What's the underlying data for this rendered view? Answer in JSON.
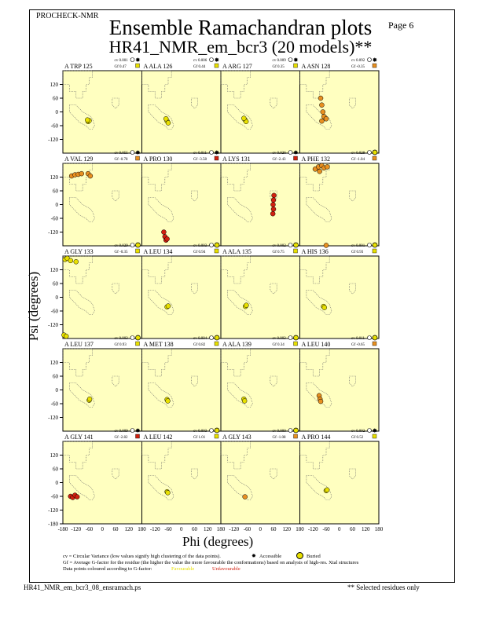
{
  "header": {
    "program": "PROCHECK-NMR",
    "page": "Page  6",
    "title": "Ensemble Ramachandran plots",
    "subtitle": "HR41_NMR_em_bcr3 (20 models)**"
  },
  "footer": {
    "filename": "HR41_NMR_em_bcr3_08_ensramach.ps",
    "note": "** Selected residues only"
  },
  "legend": {
    "cv_line": "cv = Circular Variance (low values signify high clustering of the data points).",
    "accessible": "Accessible",
    "buried": "Buried",
    "gf_line": "Gf = Average G-factor for the residue (the higher the value the more favourable the conformations) based on analysis of high-res. Xtal structures",
    "colour_line": "Data points coloured according to G-factor:",
    "favourable": "Favourable",
    "unfavourable": "Unfavourable"
  },
  "colors": {
    "panel": "#ffffc0",
    "favourable": "#e8e000",
    "mid": "#e89020",
    "unfavourable": "#d02010"
  },
  "chart_data": {
    "type": "scatter",
    "xlabel": "Phi (degrees)",
    "ylabel": "Psi (degrees)",
    "xlim": [
      -180,
      180
    ],
    "ylim": [
      -180,
      180
    ],
    "xticks": [
      "-180",
      "-120",
      "-60",
      "0",
      "60",
      "120",
      "180"
    ],
    "yticks": [
      "120",
      "60",
      "0",
      "-60",
      "-120",
      "-180"
    ],
    "panels": [
      {
        "label": "A TRP 125",
        "cv": "cv 0.001",
        "gf": "Gf 0.47",
        "gfc": "favourable",
        "acc": "accessible",
        "points": [
          [
            -65,
            -42
          ],
          [
            -60,
            -38
          ],
          [
            -68,
            -35
          ]
        ]
      },
      {
        "label": "A ALA 126",
        "cv": "cv 0.006",
        "gf": "Gf 0.44",
        "gfc": "favourable",
        "acc": "accessible",
        "points": [
          [
            -65,
            -40
          ],
          [
            -70,
            -30
          ],
          [
            -60,
            -48
          ]
        ]
      },
      {
        "label": "A ARG 127",
        "cv": "cv 0.009",
        "gf": "Gf 0.35",
        "gfc": "favourable",
        "acc": "accessible",
        "points": [
          [
            -70,
            -35
          ],
          [
            -65,
            -42
          ],
          [
            -75,
            -28
          ]
        ]
      },
      {
        "label": "A ASN 128",
        "cv": "cv 0.092",
        "gf": "Gf -0.35",
        "gfc": "mid",
        "acc": "accessible",
        "points": [
          [
            -85,
            60
          ],
          [
            -80,
            30
          ],
          [
            -75,
            0
          ],
          [
            -70,
            -20
          ],
          [
            -80,
            -40
          ],
          [
            -60,
            -30
          ]
        ]
      },
      {
        "label": "A VAL 129",
        "cv": "cv 0.055",
        "gf": "Gf -0.78",
        "gfc": "mid",
        "acc": "accessible",
        "points": [
          [
            -140,
            125
          ],
          [
            -125,
            130
          ],
          [
            -110,
            132
          ],
          [
            -95,
            135
          ],
          [
            -65,
            135
          ],
          [
            -55,
            125
          ]
        ]
      },
      {
        "label": "A PRO 130",
        "cv": "cv 0.011",
        "gf": "Gf -3.58",
        "gfc": "unfavourable",
        "acc": "accessible",
        "points": [
          [
            -80,
            -120
          ],
          [
            -75,
            -140
          ],
          [
            -70,
            -155
          ],
          [
            -65,
            -150
          ]
        ]
      },
      {
        "label": "A LYS 131",
        "cv": "cv 0.026",
        "gf": "Gf -2.43",
        "gfc": "unfavourable",
        "acc": "accessible",
        "points": [
          [
            62,
            40
          ],
          [
            60,
            20
          ],
          [
            58,
            0
          ],
          [
            60,
            -20
          ],
          [
            57,
            -40
          ]
        ]
      },
      {
        "label": "A PHE 132",
        "cv": "cv 0.028",
        "gf": "Gf -1.04",
        "gfc": "mid",
        "acc": "buried",
        "points": [
          [
            -110,
            155
          ],
          [
            -95,
            165
          ],
          [
            -80,
            170
          ],
          [
            -70,
            160
          ],
          [
            -55,
            165
          ],
          [
            -90,
            145
          ],
          [
            -60,
            -178
          ]
        ]
      },
      {
        "label": "A GLY 133",
        "cv": "cv 0.029",
        "gf": "Gf -0.35",
        "gfc": "favourable",
        "acc": "buried",
        "points": [
          [
            -170,
            165
          ],
          [
            -160,
            170
          ],
          [
            -145,
            160
          ],
          [
            -120,
            155
          ],
          [
            -175,
            -165
          ],
          [
            -165,
            -170
          ]
        ]
      },
      {
        "label": "A LEU 134",
        "cv": "cv 0.003",
        "gf": "Gf 0.94",
        "gfc": "favourable",
        "acc": "buried",
        "points": [
          [
            -65,
            -42
          ],
          [
            -60,
            -38
          ]
        ]
      },
      {
        "label": "A ALA 135",
        "cv": "cv 0.002",
        "gf": "Gf 0.75",
        "gfc": "favourable",
        "acc": "buried",
        "points": [
          [
            -68,
            -40
          ],
          [
            -64,
            -35
          ]
        ]
      },
      {
        "label": "A HIS 136",
        "cv": "cv 0.001",
        "gf": "Gf 0.93",
        "gfc": "favourable",
        "acc": "buried",
        "points": [
          [
            -72,
            -40
          ],
          [
            -68,
            -45
          ]
        ]
      },
      {
        "label": "A LEU 137",
        "cv": "cv 0.003",
        "gf": "Gf 0.93",
        "gfc": "favourable",
        "acc": "buried",
        "points": [
          [
            -60,
            -45
          ],
          [
            -58,
            -40
          ]
        ]
      },
      {
        "label": "A MET 138",
        "cv": "cv 0.004",
        "gf": "Gf 0.82",
        "gfc": "favourable",
        "acc": "buried",
        "points": [
          [
            -65,
            -42
          ],
          [
            -62,
            -48
          ]
        ]
      },
      {
        "label": "A ALA 139",
        "cv": "cv 0.003",
        "gf": "Gf 0.34",
        "gfc": "favourable",
        "acc": "buried",
        "points": [
          [
            -75,
            -40
          ],
          [
            -72,
            -48
          ]
        ]
      },
      {
        "label": "A LEU 140",
        "cv": "cv 0.011",
        "gf": "Gf -0.65",
        "gfc": "mid",
        "acc": "buried",
        "points": [
          [
            -92,
            -25
          ],
          [
            -88,
            -40
          ],
          [
            -85,
            -50
          ]
        ]
      },
      {
        "label": "A GLY 141",
        "cv": "cv 0.009",
        "gf": "Gf -2.82",
        "gfc": "unfavourable",
        "acc": "accessible",
        "points": [
          [
            -145,
            -60
          ],
          [
            -135,
            -65
          ],
          [
            -125,
            -55
          ],
          [
            -115,
            -62
          ]
        ]
      },
      {
        "label": "A LEU 142",
        "cv": "cv 0.003",
        "gf": "Gf 1.01",
        "gfc": "favourable",
        "acc": "buried",
        "points": [
          [
            -65,
            -40
          ],
          [
            -62,
            -44
          ]
        ]
      },
      {
        "label": "A GLY 143",
        "cv": "cv 0.000",
        "gf": "Gf -1.08",
        "gfc": "mid",
        "acc": "buried",
        "points": [
          [
            -70,
            -62
          ]
        ]
      },
      {
        "label": "A PRO 144",
        "cv": "cv 0.002",
        "gf": "Gf 0.52",
        "gfc": "favourable",
        "acc": "accessible",
        "points": [
          [
            -60,
            -35
          ],
          [
            -56,
            -32
          ]
        ]
      }
    ]
  }
}
